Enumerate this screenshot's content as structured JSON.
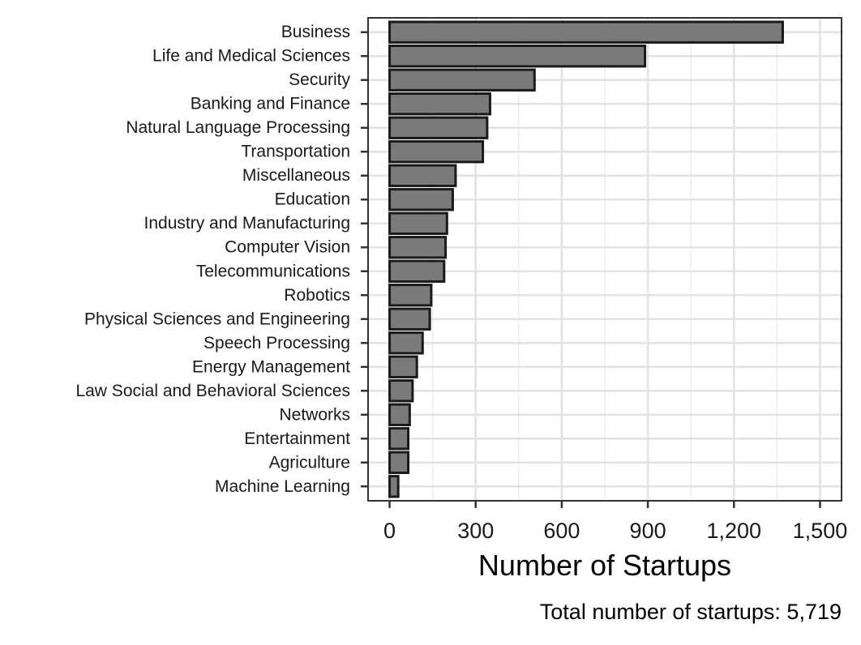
{
  "chart_data": {
    "type": "bar",
    "orientation": "horizontal",
    "categories": [
      "Business",
      "Life and Medical Sciences",
      "Security",
      "Banking and Finance",
      "Natural Language Processing",
      "Transportation",
      "Miscellaneous",
      "Education",
      "Industry and Manufacturing",
      "Computer Vision",
      "Telecommunications",
      "Robotics",
      "Physical Sciences and Engineering",
      "Speech Processing",
      "Energy Management",
      "Law Social and Behavioral Sciences",
      "Networks",
      "Entertainment",
      "Agriculture",
      "Machine Learning"
    ],
    "values": [
      1370,
      890,
      505,
      350,
      340,
      325,
      230,
      220,
      200,
      195,
      190,
      145,
      140,
      115,
      95,
      80,
      70,
      65,
      65,
      30
    ],
    "xlabel": "Number of Startups",
    "ylabel": "",
    "xlim": [
      -75,
      1575
    ],
    "xticks": [
      0,
      300,
      600,
      900,
      1200,
      1500
    ],
    "xtick_labels": [
      "0",
      "300",
      "600",
      "900",
      "1,200",
      "1,500"
    ],
    "grid": true,
    "bar_color": "#7a7a7a",
    "bar_edge_color": "#1a1a1a",
    "caption": "Total number of startups: 5,719"
  }
}
